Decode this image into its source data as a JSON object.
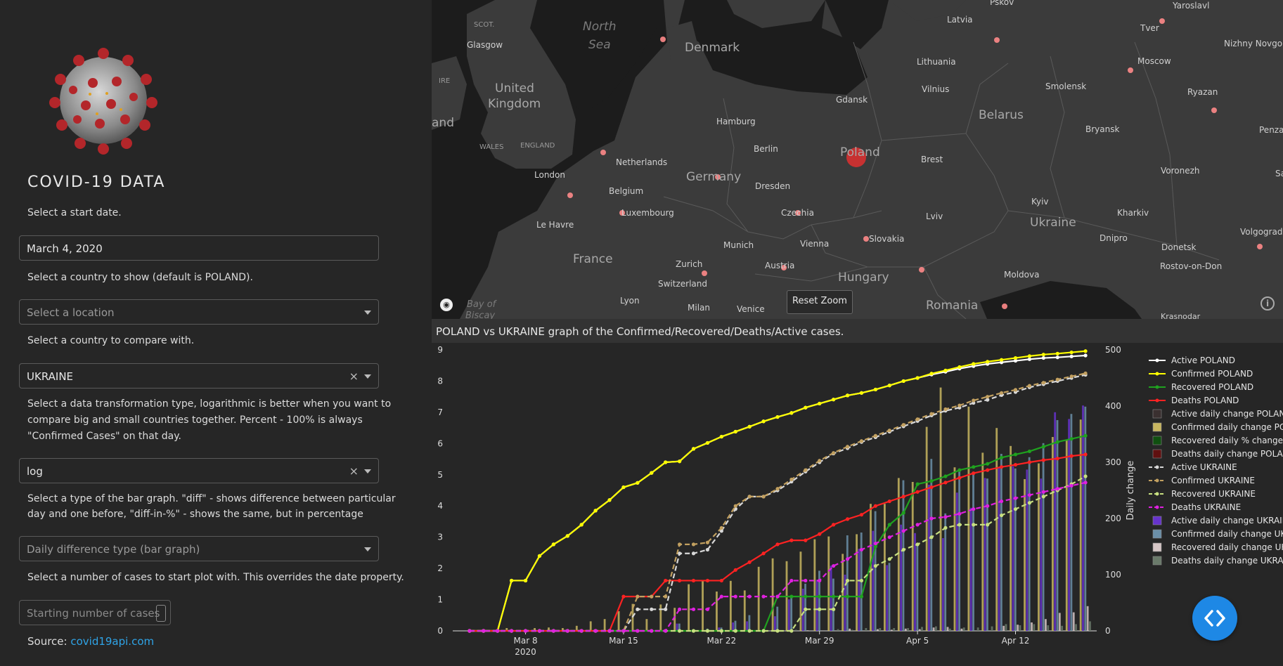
{
  "sidebar": {
    "title": "COVID-19 DATA",
    "start_date_label": "Select a start date.",
    "start_date_value": "March 4, 2020",
    "country_label": "Select a country to show (default is POLAND).",
    "country_placeholder": "Select a location",
    "compare_label": "Select a country to compare with.",
    "compare_value": "UKRAINE",
    "transform_label_1": "Select a data transformation type, logarithmic is better when you want to",
    "transform_label_2": "compare big and small countries together. Percent - 100% is always",
    "transform_label_3": "\"Confirmed Cases\" on that day.",
    "transform_value": "log",
    "bar_label_1": "Select a type of the bar graph. \"diff\" - shows difference between particular",
    "bar_label_2": "day and one before, \"diff-in-%\" - shows the same, but in percentage",
    "bar_placeholder": "Daily difference type (bar graph)",
    "cases_label": "Select a number of cases to start plot with. This overrides the date property.",
    "cases_placeholder": "Starting number of cases",
    "source_prefix": "Source: ",
    "source_link": "covid19api.com"
  },
  "map": {
    "reset_zoom": "Reset Zoom",
    "seas": [
      "North",
      "Sea",
      "Bay of",
      "Biscay"
    ],
    "countries": [
      "Denmark",
      "United",
      "Kingdom",
      "Germany",
      "Poland",
      "Belarus",
      "Ukraine",
      "France",
      "Hungary",
      "Romania",
      "Lithuania",
      "Latvia",
      "Netherlands",
      "Belgium",
      "Luxembourg",
      "Czechia",
      "Slovakia",
      "Austria",
      "Switzerland",
      "Moldova"
    ],
    "cities": [
      "SCOT.",
      "Glasgow",
      "IRE",
      "WALES",
      "ENGLAND",
      "London",
      "Le Havre",
      "Hamburg",
      "Berlin",
      "Dresden",
      "Gdansk",
      "Vilnius",
      "Smolensk",
      "Bryansk",
      "Voronezh",
      "Kyiv",
      "Kharkiv",
      "Dnipro",
      "Donetsk",
      "Rostov-on-Don",
      "Lviv",
      "Brest",
      "Munich",
      "Vienna",
      "Zurich",
      "Lyon",
      "Milan",
      "Venice",
      "Tver",
      "Moscow",
      "Ryazan",
      "Yaroslavl",
      "Nizhny Novgorod",
      "Volgograd",
      "Krasnodar",
      "Pskov",
      "Penza",
      "Sa",
      "and"
    ]
  },
  "chart": {
    "caption": "POLAND vs UKRAINE graph of the Confirmed/Recovered/Deaths/Active cases.",
    "right_axis_label": "Daily change"
  },
  "chart_data": {
    "type": "line",
    "x": [
      "2020-03-04",
      "2020-03-05",
      "2020-03-06",
      "2020-03-07",
      "2020-03-08",
      "2020-03-09",
      "2020-03-10",
      "2020-03-11",
      "2020-03-12",
      "2020-03-13",
      "2020-03-14",
      "2020-03-15",
      "2020-03-16",
      "2020-03-17",
      "2020-03-18",
      "2020-03-19",
      "2020-03-20",
      "2020-03-21",
      "2020-03-22",
      "2020-03-23",
      "2020-03-24",
      "2020-03-25",
      "2020-03-26",
      "2020-03-27",
      "2020-03-28",
      "2020-03-29",
      "2020-03-30",
      "2020-03-31",
      "2020-04-01",
      "2020-04-02",
      "2020-04-03",
      "2020-04-04",
      "2020-04-05",
      "2020-04-06",
      "2020-04-07",
      "2020-04-08",
      "2020-04-09",
      "2020-04-10",
      "2020-04-11",
      "2020-04-12",
      "2020-04-13",
      "2020-04-14",
      "2020-04-15",
      "2020-04-16",
      "2020-04-17"
    ],
    "x_ticks": [
      "Mar 8",
      "Mar 15",
      "Mar 22",
      "Mar 29",
      "Apr 5",
      "Apr 12"
    ],
    "x_year_label": "2020",
    "y_left": {
      "range": [
        0,
        9
      ],
      "ticks": [
        0,
        1,
        2,
        3,
        4,
        5,
        6,
        7,
        8,
        9
      ]
    },
    "y_right": {
      "range": [
        0,
        500
      ],
      "ticks": [
        0,
        100,
        200,
        300,
        400,
        500
      ],
      "label": "Daily change"
    },
    "legend_position": "right",
    "series": [
      {
        "name": "Active POLAND",
        "color": "#ffffff",
        "style": "solid",
        "values": [
          0,
          0,
          0,
          1.61,
          1.61,
          2.4,
          2.77,
          3.04,
          3.4,
          3.85,
          4.19,
          4.6,
          4.74,
          5.06,
          5.4,
          5.43,
          5.83,
          6.02,
          6.22,
          6.38,
          6.54,
          6.71,
          6.85,
          6.98,
          7.15,
          7.28,
          7.41,
          7.54,
          7.62,
          7.73,
          7.86,
          8.0,
          8.1,
          8.21,
          8.3,
          8.4,
          8.48,
          8.55,
          8.6,
          8.65,
          8.7,
          8.74,
          8.76,
          8.79,
          8.82
        ]
      },
      {
        "name": "Confirmed POLAND",
        "color": "#ffff00",
        "style": "solid",
        "values": [
          0,
          0,
          0,
          1.61,
          1.61,
          2.4,
          2.77,
          3.04,
          3.4,
          3.85,
          4.19,
          4.6,
          4.74,
          5.06,
          5.4,
          5.43,
          5.83,
          6.02,
          6.22,
          6.38,
          6.54,
          6.71,
          6.85,
          6.98,
          7.15,
          7.28,
          7.41,
          7.54,
          7.62,
          7.73,
          7.86,
          8.0,
          8.1,
          8.24,
          8.34,
          8.45,
          8.55,
          8.62,
          8.68,
          8.74,
          8.8,
          8.85,
          8.88,
          8.92,
          8.96
        ]
      },
      {
        "name": "Recovered POLAND",
        "color": "#1fa21f",
        "style": "solid",
        "values": [
          0,
          0,
          0,
          0,
          0,
          0,
          0,
          0,
          0,
          0,
          0,
          0,
          0,
          0,
          0,
          0,
          0,
          0,
          0,
          0,
          0,
          0,
          1.1,
          1.1,
          1.1,
          1.1,
          1.1,
          1.1,
          1.1,
          2.7,
          3.4,
          3.78,
          4.7,
          4.8,
          4.95,
          5.15,
          5.25,
          5.35,
          5.55,
          5.65,
          5.75,
          5.9,
          6.05,
          6.15,
          6.25
        ]
      },
      {
        "name": "Deaths POLAND",
        "color": "#ff2222",
        "style": "solid",
        "values": [
          0,
          0,
          0,
          0,
          0,
          0,
          0,
          0,
          0,
          0,
          0,
          1.1,
          1.1,
          1.1,
          1.61,
          1.61,
          1.61,
          1.61,
          1.61,
          1.95,
          2.2,
          2.48,
          2.77,
          2.9,
          2.9,
          3.1,
          3.4,
          3.58,
          3.72,
          4.0,
          4.15,
          4.3,
          4.45,
          4.6,
          4.75,
          4.9,
          5.05,
          5.15,
          5.25,
          5.32,
          5.4,
          5.47,
          5.52,
          5.6,
          5.65
        ]
      },
      {
        "name": "Active UKRAINE",
        "color": "#d8d8d8",
        "style": "dash",
        "values": [
          0,
          0,
          0,
          0,
          0,
          0,
          0,
          0,
          0,
          0,
          0,
          0,
          0.69,
          0.69,
          0.69,
          2.48,
          2.48,
          2.6,
          3.2,
          3.9,
          4.3,
          4.3,
          4.5,
          4.78,
          5.1,
          5.4,
          5.68,
          5.85,
          6.05,
          6.2,
          6.38,
          6.55,
          6.72,
          6.9,
          7.05,
          7.15,
          7.3,
          7.4,
          7.55,
          7.65,
          7.8,
          7.9,
          8.0,
          8.1,
          8.2
        ]
      },
      {
        "name": "Confirmed UKRAINE",
        "color": "#c2a060",
        "style": "dash",
        "values": [
          0,
          0,
          0,
          0,
          0,
          0,
          0,
          0,
          0,
          0,
          0,
          0,
          1.1,
          1.1,
          1.1,
          2.77,
          2.77,
          2.83,
          3.3,
          4.0,
          4.3,
          4.3,
          4.55,
          4.85,
          5.15,
          5.45,
          5.7,
          5.9,
          6.08,
          6.25,
          6.42,
          6.6,
          6.78,
          6.95,
          7.1,
          7.22,
          7.38,
          7.5,
          7.62,
          7.72,
          7.85,
          7.95,
          8.05,
          8.15,
          8.25
        ]
      },
      {
        "name": "Recovered UKRAINE",
        "color": "#c8e080",
        "style": "dash",
        "values": [
          0,
          0,
          0,
          0,
          0,
          0,
          0,
          0,
          0,
          0,
          0,
          0,
          0,
          0,
          0,
          0,
          0,
          0,
          0,
          0,
          0,
          0,
          0,
          0,
          0.69,
          0.69,
          0.69,
          1.61,
          1.61,
          2.08,
          2.3,
          2.6,
          2.77,
          3.0,
          3.3,
          3.4,
          3.4,
          3.4,
          3.7,
          3.9,
          4.1,
          4.3,
          4.5,
          4.7,
          4.95
        ]
      },
      {
        "name": "Deaths UKRAINE",
        "color": "#e020e0",
        "style": "dash",
        "values": [
          0,
          0,
          0,
          0,
          0,
          0,
          0,
          0,
          0,
          0,
          0,
          0,
          0,
          0,
          0,
          0.69,
          0.69,
          0.69,
          1.1,
          1.1,
          1.1,
          1.1,
          1.1,
          1.61,
          1.61,
          1.61,
          2.08,
          2.3,
          2.6,
          2.8,
          3.0,
          3.2,
          3.4,
          3.6,
          3.65,
          3.75,
          3.9,
          4.0,
          4.15,
          4.25,
          4.35,
          4.45,
          4.55,
          4.65,
          4.75
        ]
      }
    ],
    "bar_series": [
      {
        "name": "Active daily change POLAND",
        "color": "#3a3030",
        "border": "#aaaaaa"
      },
      {
        "name": "Confirmed daily change POLAND",
        "color": "#c8b660",
        "values": [
          0,
          0,
          0,
          5,
          1,
          5,
          6,
          5,
          9,
          17,
          21,
          35,
          48,
          21,
          47,
          41,
          83,
          90,
          70,
          89,
          72,
          114,
          129,
          124,
          141,
          163,
          168,
          137,
          172,
          226,
          226,
          272,
          265,
          363,
          433,
          291,
          399,
          317,
          361,
          329,
          270,
          298,
          345,
          340,
          376
        ]
      },
      {
        "name": "Recovered daily % change POLAND",
        "color": "#105010"
      },
      {
        "name": "Deaths daily change POLAND",
        "color": "#601010"
      },
      {
        "name": "Active daily change UKRAINE",
        "color": "#6633cc",
        "values": [
          0,
          0,
          0,
          0,
          0,
          0,
          0,
          0,
          0,
          0,
          0,
          0,
          1,
          0,
          0,
          13,
          0,
          1,
          6,
          15,
          17,
          0,
          26,
          56,
          75,
          91,
          116,
          100,
          146,
          178,
          117,
          189,
          174,
          260,
          165,
          246,
          219,
          272,
          292,
          293,
          287,
          271,
          389,
          377,
          401
        ]
      },
      {
        "name": "Confirmed daily change UKRAINE",
        "color": "#6b8fa8",
        "values": [
          0,
          0,
          0,
          0,
          0,
          0,
          0,
          0,
          0,
          0,
          0,
          0,
          2,
          0,
          0,
          13,
          0,
          4,
          6,
          18,
          28,
          0,
          43,
          62,
          84,
          107,
          93,
          170,
          175,
          213,
          121,
          268,
          154,
          306,
          209,
          283,
          282,
          271,
          315,
          289,
          309,
          334,
          375,
          386,
          399
        ]
      },
      {
        "name": "Recovered daily change UKRAINE",
        "color": "#d6c6c6",
        "values": [
          0,
          0,
          0,
          0,
          0,
          0,
          0,
          0,
          0,
          0,
          0,
          0,
          0,
          0,
          0,
          0,
          0,
          0,
          0,
          0,
          0,
          0,
          0,
          0,
          1,
          0,
          0,
          4,
          0,
          3,
          2,
          4,
          3,
          6,
          7,
          4,
          0,
          0,
          9,
          11,
          15,
          21,
          32,
          33,
          44
        ]
      },
      {
        "name": "Deaths daily change UKRAINE",
        "color": "#6a7a6a",
        "values": [
          0,
          0,
          0,
          0,
          0,
          0,
          0,
          0,
          0,
          0,
          0,
          0,
          0,
          0,
          0,
          1,
          0,
          0,
          1,
          0,
          0,
          0,
          0,
          2,
          0,
          0,
          3,
          2,
          5,
          5,
          5,
          5,
          7,
          8,
          4,
          6,
          6,
          8,
          12,
          10,
          12,
          10,
          9,
          12,
          17
        ]
      }
    ],
    "legend": [
      "Active POLAND",
      "Confirmed POLAND",
      "Recovered POLAND",
      "Deaths POLAND",
      "Active daily  change POLAND",
      "Confirmed daily  change POLAND",
      "Recovered daily % change POLAND",
      "Deaths daily  change POLAND",
      "Active UKRAINE",
      "Confirmed UKRAINE",
      "Recovered UKRAINE",
      "Deaths UKRAINE",
      "Active daily  change UKRAINE",
      "Confirmed daily  change UKRAINE",
      "Recovered daily  change UKRAINE",
      "Deaths daily  change UKRAINE"
    ]
  },
  "colors": {
    "accent": "#2fa4e7",
    "fab": "#1e88e5",
    "background": "#262626"
  }
}
